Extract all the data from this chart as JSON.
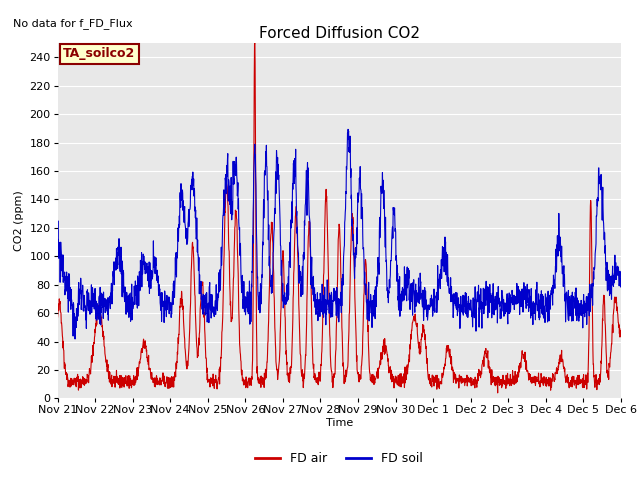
{
  "title": "Forced Diffusion CO2",
  "top_left_text": "No data for f_FD_Flux",
  "ylabel": "CO2 (ppm)",
  "xlabel": "Time",
  "ylim": [
    0,
    250
  ],
  "yticks": [
    0,
    20,
    40,
    60,
    80,
    100,
    120,
    140,
    160,
    180,
    200,
    220,
    240
  ],
  "plot_bg_color": "#e8e8e8",
  "fig_bg_color": "#ffffff",
  "box_label": "TA_soilco2",
  "box_label_color": "#8B0000",
  "box_bg_color": "#ffffcc",
  "red_line_color": "#cc0000",
  "blue_line_color": "#0000cc",
  "legend_red_label": "FD air",
  "legend_blue_label": "FD soil",
  "x_tick_labels": [
    "Nov 21",
    "Nov 22",
    "Nov 23",
    "Nov 24",
    "Nov 25",
    "Nov 26",
    "Nov 27",
    "Nov 28",
    "Nov 29",
    "Nov 30",
    "Dec 1",
    "Dec 2",
    "Dec 3",
    "Dec 4",
    "Dec 5",
    "Dec 6"
  ],
  "line_width": 0.8,
  "title_fontsize": 11,
  "label_fontsize": 8,
  "tick_fontsize": 8
}
